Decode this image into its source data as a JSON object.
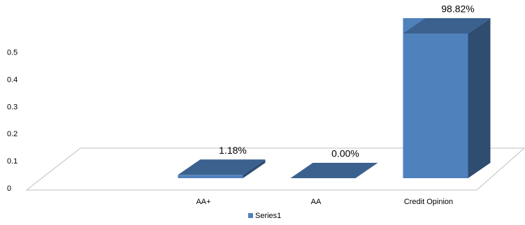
{
  "chart_data": {
    "type": "bar3d",
    "categories": [
      null,
      "AA+",
      "AA",
      "Credit Opinion"
    ],
    "series": [
      {
        "name": "Series1",
        "color": "#4f81bd",
        "values": [
          null,
          0.0118,
          0.0,
          0.9882
        ],
        "value_labels": [
          null,
          "1.18%",
          "0.00%",
          "98.82%"
        ]
      }
    ],
    "ylim": [
      0,
      0.52
    ],
    "yticks": [
      0,
      0.1,
      0.2,
      0.3,
      0.4,
      0.5
    ],
    "legend": "bottom"
  }
}
